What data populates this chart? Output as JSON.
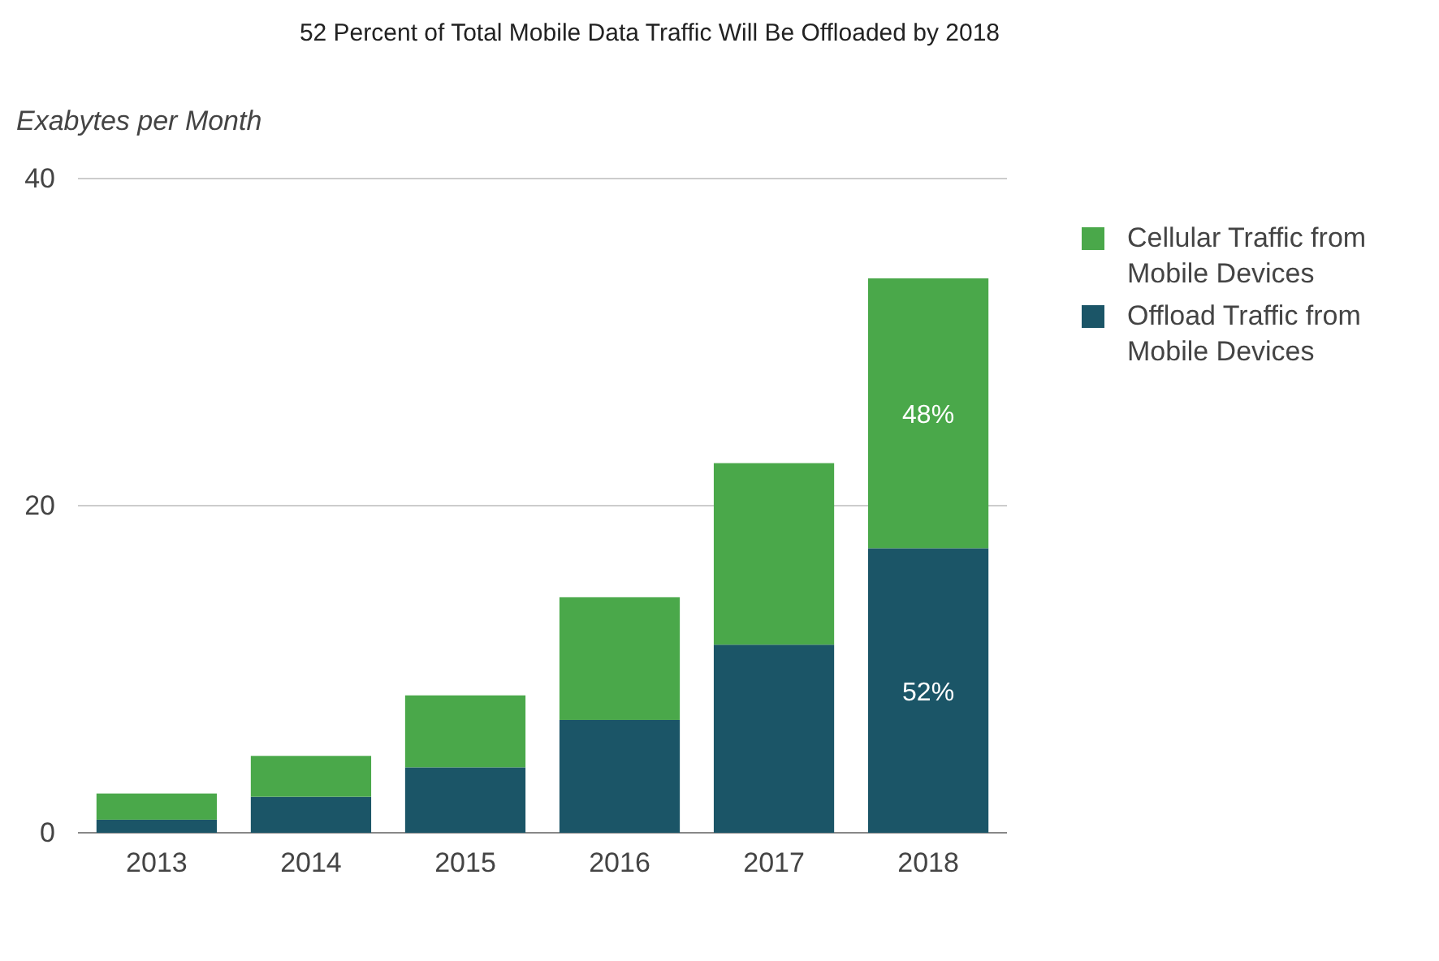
{
  "chart_data": {
    "type": "bar",
    "title": "52 Percent of Total Mobile Data Traffic Will Be Offloaded by 2018",
    "ylabel": "Exabytes per Month",
    "categories": [
      "2013",
      "2014",
      "2015",
      "2016",
      "2017",
      "2018"
    ],
    "stacked": true,
    "series": [
      {
        "name": "Offload Traffic from Mobile Devices",
        "color": "#1b5567",
        "values": [
          0.8,
          2.2,
          4.0,
          6.9,
          11.5,
          17.4
        ]
      },
      {
        "name": "Cellular Traffic from Mobile Devices",
        "color": "#4aa84a",
        "values": [
          1.6,
          2.5,
          4.4,
          7.5,
          11.1,
          16.5
        ]
      }
    ],
    "annotations": [
      "52%",
      "48%"
    ],
    "ylim": [
      0,
      40
    ],
    "yticks": [
      0,
      20,
      40
    ],
    "grid": "y",
    "legend": "top right"
  }
}
